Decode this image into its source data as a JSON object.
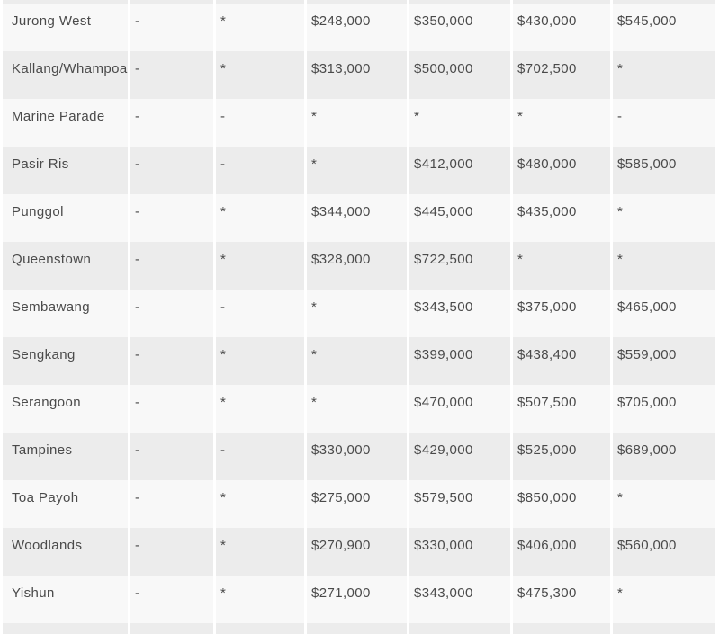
{
  "colors": {
    "row_light": "#f8f8f8",
    "row_dark": "#ececec",
    "page_bg": "#ffffff",
    "text": "#4a4a4a"
  },
  "table": {
    "rows": [
      {
        "town": "Jurong West",
        "values": [
          "-",
          "*",
          "$248,000",
          "$350,000",
          "$430,000",
          "$545,000"
        ]
      },
      {
        "town": "Kallang/Whampoa",
        "values": [
          "-",
          "*",
          "$313,000",
          "$500,000",
          "$702,500",
          "*"
        ]
      },
      {
        "town": "Marine Parade",
        "values": [
          "-",
          "-",
          "*",
          "*",
          "*",
          "-"
        ]
      },
      {
        "town": "Pasir Ris",
        "values": [
          "-",
          "-",
          "*",
          "$412,000",
          "$480,000",
          "$585,000"
        ]
      },
      {
        "town": "Punggol",
        "values": [
          "-",
          "*",
          "$344,000",
          "$445,000",
          "$435,000",
          "*"
        ]
      },
      {
        "town": "Queenstown",
        "values": [
          "-",
          "*",
          "$328,000",
          "$722,500",
          "*",
          "*"
        ]
      },
      {
        "town": "Sembawang",
        "values": [
          "-",
          "-",
          "*",
          "$343,500",
          "$375,000",
          "$465,000"
        ]
      },
      {
        "town": "Sengkang",
        "values": [
          "-",
          "*",
          "*",
          "$399,000",
          "$438,400",
          "$559,000"
        ]
      },
      {
        "town": "Serangoon",
        "values": [
          "-",
          "*",
          "*",
          "$470,000",
          "$507,500",
          "$705,000"
        ]
      },
      {
        "town": "Tampines",
        "values": [
          "-",
          "-",
          "$330,000",
          "$429,000",
          "$525,000",
          "$689,000"
        ]
      },
      {
        "town": "Toa Payoh",
        "values": [
          "-",
          "*",
          "$275,000",
          "$579,500",
          "$850,000",
          "*"
        ]
      },
      {
        "town": "Woodlands",
        "values": [
          "-",
          "*",
          "$270,900",
          "$330,000",
          "$406,000",
          "$560,000"
        ]
      },
      {
        "town": "Yishun",
        "values": [
          "-",
          "*",
          "$271,000",
          "$343,000",
          "$475,300",
          "*"
        ]
      }
    ]
  }
}
